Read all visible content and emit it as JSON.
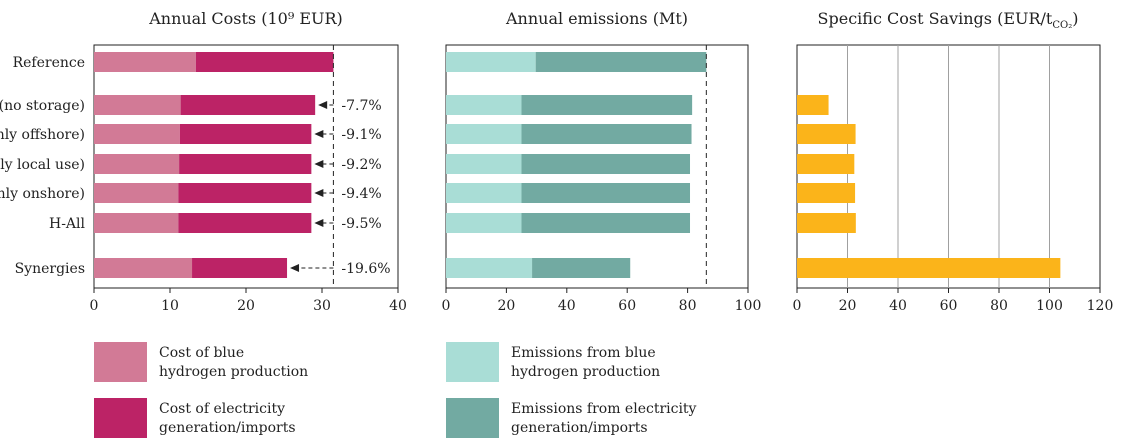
{
  "colors": {
    "cost_blue": "#d27a96",
    "cost_elec": "#bc2366",
    "em_blue": "#a9ddd6",
    "em_elec": "#72aaa2",
    "savings": "#fbb41a",
    "grid": "#a0a0a0",
    "axis": "#222222"
  },
  "categories": [
    "Reference",
    "(no storage)",
    "(only offshore)",
    "(only local use)",
    "(only onshore)",
    "H-All",
    "Synergies"
  ],
  "chart_data": [
    {
      "type": "bar",
      "orientation": "horizontal",
      "stacked": true,
      "title": "Annual Costs (10⁹ EUR)",
      "categories": [
        "Reference",
        "(no storage)",
        "(only offshore)",
        "(only local use)",
        "(only onshore)",
        "H-All",
        "Synergies"
      ],
      "series": [
        {
          "name": "Cost of blue hydrogen production",
          "values": [
            13.4,
            11.4,
            11.3,
            11.2,
            11.1,
            11.1,
            12.9
          ]
        },
        {
          "name": "Cost of electricity generation/imports",
          "values": [
            18.1,
            17.7,
            17.3,
            17.4,
            17.5,
            17.5,
            12.5
          ]
        }
      ],
      "annotations": [
        "",
        "-7.7%",
        "-9.1%",
        "-9.2%",
        "-9.4%",
        "-9.5%",
        "-19.6%"
      ],
      "reference_line": 31.5,
      "xlim": [
        0,
        40
      ],
      "xticks": [
        0,
        10,
        20,
        30,
        40
      ],
      "grid": false
    },
    {
      "type": "bar",
      "orientation": "horizontal",
      "stacked": true,
      "title": "Annual emissions (Mt)",
      "categories": [
        "Reference",
        "(no storage)",
        "(only offshore)",
        "(only local use)",
        "(only onshore)",
        "H-All",
        "Synergies"
      ],
      "series": [
        {
          "name": "Emissions from blue hydrogen production",
          "values": [
            29.7,
            25.0,
            25.0,
            25.0,
            25.0,
            25.0,
            28.5
          ]
        },
        {
          "name": "Emissions from electricity generation/imports",
          "values": [
            56.5,
            56.5,
            56.3,
            55.8,
            55.8,
            55.8,
            32.5
          ]
        }
      ],
      "reference_line": 86.2,
      "xlim": [
        0,
        100
      ],
      "xticks": [
        0,
        20,
        40,
        60,
        80,
        100
      ],
      "grid": false
    },
    {
      "type": "bar",
      "orientation": "horizontal",
      "title": "Specific Cost Savings (EUR/tCO₂)",
      "categories": [
        "Reference",
        "(no storage)",
        "(only offshore)",
        "(only local use)",
        "(only onshore)",
        "H-All",
        "Synergies"
      ],
      "values": [
        0,
        12.5,
        23.2,
        22.7,
        23.0,
        23.3,
        104.3
      ],
      "xlim": [
        0,
        120
      ],
      "xticks": [
        0,
        20,
        40,
        60,
        80,
        100,
        120
      ],
      "grid": true
    }
  ],
  "legend": [
    {
      "label_line1": "Cost of blue",
      "label_line2": "hydrogen production",
      "color_key": "cost_blue"
    },
    {
      "label_line1": "Cost of electricity",
      "label_line2": "generation/imports",
      "color_key": "cost_elec"
    },
    {
      "label_line1": "Emissions from blue",
      "label_line2": "hydrogen production",
      "color_key": "em_blue"
    },
    {
      "label_line1": "Emissions from electricity",
      "label_line2": "generation/imports",
      "color_key": "em_elec"
    }
  ],
  "titles": {
    "costs": "Annual Costs (10⁹ EUR)",
    "emissions": "Annual emissions (Mt)",
    "savings_main": "Specific Cost Savings (EUR/t",
    "savings_sub": "CO₂",
    "savings_end": ")"
  }
}
